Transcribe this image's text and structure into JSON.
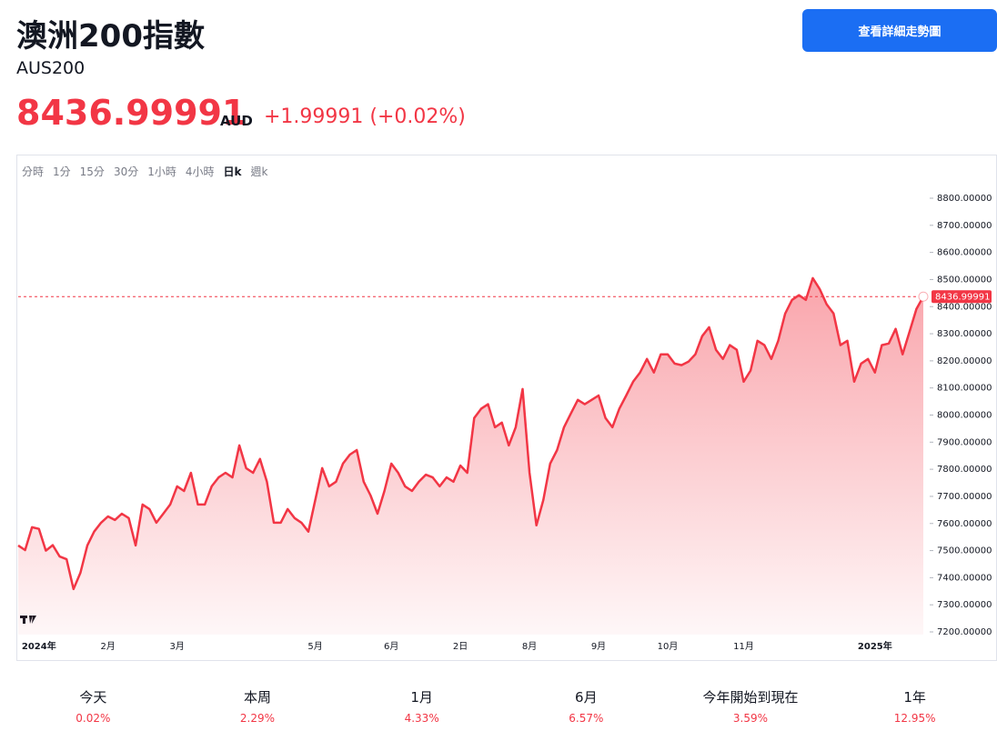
{
  "header": {
    "title": "澳洲200指數",
    "symbol": "AUS200",
    "price": "8436.99991",
    "currency": "AUD",
    "change": "+1.99991 (+0.02%)",
    "button": "查看詳細走勢圖"
  },
  "timeframes": [
    "分時",
    "1分",
    "15分",
    "30分",
    "1小時",
    "4小時",
    "日k",
    "週k"
  ],
  "active_timeframe": 6,
  "chart_data": {
    "type": "area",
    "color": "#f23645",
    "price_line": true,
    "categories": [
      null,
      null,
      null,
      "2024年",
      null,
      null,
      null,
      null,
      null,
      null,
      null,
      null,
      null,
      "2月",
      null,
      null,
      null,
      null,
      null,
      null,
      null,
      null,
      null,
      "3月",
      null,
      null,
      null,
      null,
      null,
      null,
      null,
      null,
      null,
      null,
      null,
      null,
      null,
      null,
      null,
      null,
      null,
      null,
      null,
      "5月",
      null,
      null,
      null,
      null,
      null,
      null,
      null,
      null,
      null,
      null,
      "6月",
      null,
      null,
      null,
      null,
      null,
      null,
      null,
      null,
      null,
      "2日",
      null,
      null,
      null,
      null,
      null,
      null,
      null,
      null,
      null,
      "8月",
      null,
      null,
      null,
      null,
      null,
      null,
      null,
      null,
      null,
      "9月",
      null,
      null,
      null,
      null,
      null,
      null,
      null,
      null,
      null,
      "10月",
      null,
      null,
      null,
      null,
      null,
      null,
      null,
      null,
      null,
      null,
      "11月",
      null,
      null,
      null,
      null,
      null,
      null,
      null,
      null,
      null,
      null,
      null,
      null,
      null,
      null,
      null,
      null,
      null,
      null,
      "2025年",
      null,
      null,
      null,
      null,
      null,
      null,
      null
    ],
    "values": [
      7519,
      7502,
      7586,
      7580,
      7500,
      7520,
      7478,
      7468,
      7358,
      7418,
      7519,
      7570,
      7603,
      7626,
      7613,
      7636,
      7620,
      7519,
      7670,
      7653,
      7603,
      7636,
      7670,
      7737,
      7720,
      7787,
      7670,
      7670,
      7737,
      7770,
      7787,
      7770,
      7888,
      7804,
      7787,
      7838,
      7754,
      7603,
      7603,
      7653,
      7620,
      7603,
      7570,
      7687,
      7804,
      7737,
      7754,
      7821,
      7854,
      7871,
      7754,
      7703,
      7636,
      7720,
      7821,
      7787,
      7737,
      7720,
      7754,
      7780,
      7770,
      7737,
      7770,
      7754,
      7814,
      7787,
      7989,
      8023,
      8040,
      7955,
      7972,
      7888,
      7955,
      8096,
      7787,
      7593,
      7687,
      7821,
      7871,
      7955,
      8006,
      8056,
      8040,
      8056,
      8072,
      7989,
      7955,
      8023,
      8072,
      8123,
      8157,
      8207,
      8157,
      8224,
      8224,
      8190,
      8184,
      8197,
      8224,
      8291,
      8324,
      8241,
      8207,
      8258,
      8241,
      8123,
      8164,
      8274,
      8258,
      8207,
      8274,
      8374,
      8425,
      8442,
      8425,
      8505,
      8465,
      8409,
      8375,
      8258,
      8274,
      8123,
      8190,
      8207,
      8157,
      8258,
      8264,
      8318,
      8224,
      8307,
      8391,
      8436.99991
    ],
    "ylim": [
      7200,
      8800
    ],
    "yticks": [
      {
        "value": 7200,
        "label": "7200.00000"
      },
      {
        "value": 7300,
        "label": "7300.00000"
      },
      {
        "value": 7400,
        "label": "7400.00000"
      },
      {
        "value": 7500,
        "label": "7500.00000"
      },
      {
        "value": 7600,
        "label": "7600.00000"
      },
      {
        "value": 7700,
        "label": "7700.00000"
      },
      {
        "value": 7800,
        "label": "7800.00000"
      },
      {
        "value": 7900,
        "label": "7900.00000"
      },
      {
        "value": 8000,
        "label": "8000.00000"
      },
      {
        "value": 8100,
        "label": "8100.00000"
      },
      {
        "value": 8200,
        "label": "8200.00000"
      },
      {
        "value": 8300,
        "label": "8300.00000"
      },
      {
        "value": 8400,
        "label": "8400.00000"
      },
      {
        "value": 8500,
        "label": "8500.00000"
      },
      {
        "value": 8600,
        "label": "8600.00000"
      },
      {
        "value": 8700,
        "label": "8700.00000"
      },
      {
        "value": 8800,
        "label": "8800.00000"
      }
    ]
  },
  "performance": [
    {
      "label": "今天",
      "value": "0.02%"
    },
    {
      "label": "本周",
      "value": "2.29%"
    },
    {
      "label": "1月",
      "value": "4.33%"
    },
    {
      "label": "6月",
      "value": "6.57%"
    },
    {
      "label": "今年開始到現在",
      "value": "3.59%"
    },
    {
      "label": "1年",
      "value": "12.95%"
    }
  ]
}
